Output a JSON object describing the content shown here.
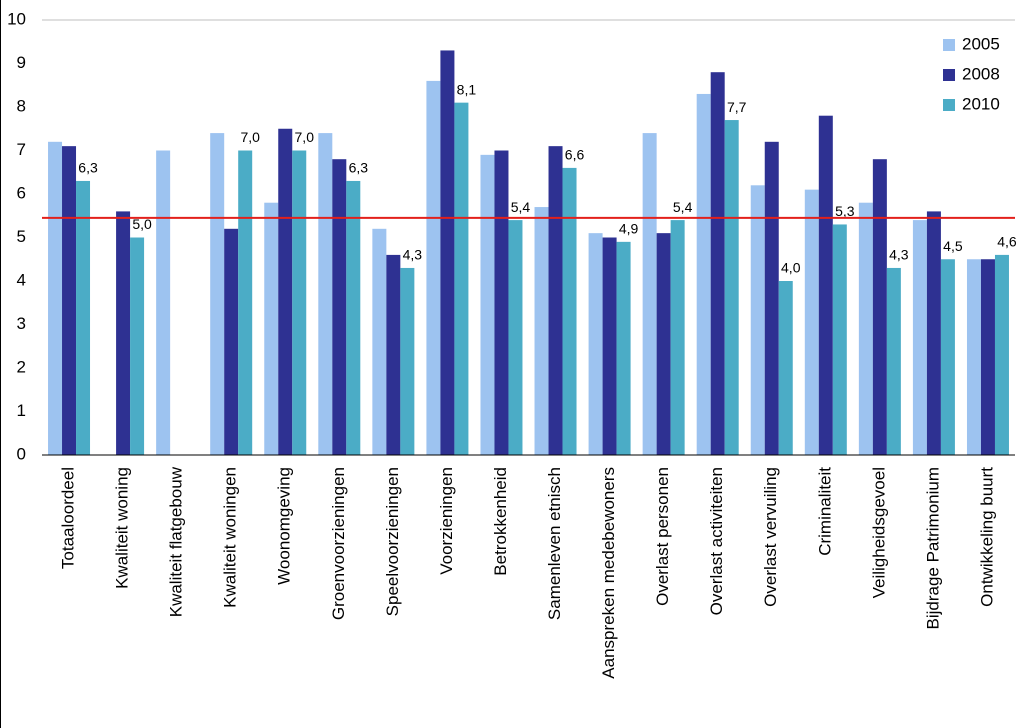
{
  "chart_data": {
    "type": "bar",
    "categories": [
      "Totaaloordeel",
      "Kwaliteit woning",
      "Kwaliteit flatgebouw",
      "Kwaliteit woningen",
      "Woonomgeving",
      "Groenvoorzieningen",
      "Speelvoorzieningen",
      "Voorzieningen",
      "Betrokkenheid",
      "Samenleven etnisch",
      "Aanspreken medebewoners",
      "Overlast personen",
      "Overlast activiteiten",
      "Overlast vervuiling",
      "Criminaliteit",
      "Veiligheidsgevoel",
      "Bijdrage Patrimonium",
      "Ontwikkeling buurt"
    ],
    "series": [
      {
        "name": "2005",
        "color": "#9dc3f0",
        "values": [
          7.2,
          null,
          7.0,
          7.4,
          5.8,
          7.4,
          5.2,
          8.6,
          6.9,
          5.7,
          5.1,
          7.4,
          8.3,
          6.2,
          6.1,
          5.8,
          5.4,
          4.5
        ]
      },
      {
        "name": "2008",
        "color": "#2e3192",
        "values": [
          7.1,
          5.6,
          null,
          5.2,
          7.5,
          6.8,
          4.6,
          9.3,
          7.0,
          7.1,
          5.0,
          5.1,
          8.8,
          7.2,
          7.8,
          6.8,
          5.6,
          4.5
        ]
      },
      {
        "name": "2010",
        "color": "#4bacc6",
        "values": [
          6.3,
          5.0,
          null,
          7.0,
          7.0,
          6.3,
          4.3,
          8.1,
          5.4,
          6.6,
          4.9,
          5.4,
          7.7,
          4.0,
          5.3,
          4.3,
          4.5,
          4.6
        ],
        "value_labels": [
          "6,3",
          "5,0",
          null,
          "7,0",
          "7,0",
          "6,3",
          "4,3",
          "8,1",
          "5,4",
          "6,6",
          "4,9",
          "5,4",
          "7,7",
          "4,0",
          "5,3",
          "4,3",
          "4,5",
          "4,6"
        ]
      }
    ],
    "reference_line": {
      "value": 5.45,
      "color": "#e3201b"
    },
    "ylim": [
      0,
      10
    ],
    "yticks": [
      0,
      1,
      2,
      3,
      4,
      5,
      6,
      7,
      8,
      9,
      10
    ],
    "grid": false,
    "legend": "top-right"
  }
}
